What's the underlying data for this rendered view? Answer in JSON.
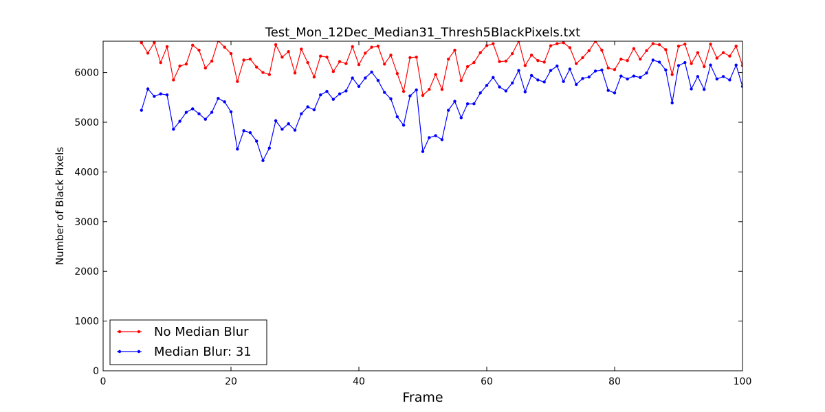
{
  "chart_data": {
    "type": "line",
    "title": "Test_Mon_12Dec_Median31_Thresh5BlackPixels.txt",
    "xlabel": "Frame",
    "ylabel": "Number of Black Pixels",
    "xlim": [
      0,
      100
    ],
    "ylim": [
      0,
      6630
    ],
    "xticks": [
      0,
      20,
      40,
      60,
      80,
      100
    ],
    "yticks": [
      0,
      1000,
      2000,
      3000,
      4000,
      5000,
      6000
    ],
    "grid": false,
    "legend_position": "lower-left",
    "x": [
      6,
      7,
      8,
      9,
      10,
      11,
      12,
      13,
      14,
      15,
      16,
      17,
      18,
      19,
      20,
      21,
      22,
      23,
      24,
      25,
      26,
      27,
      28,
      29,
      30,
      31,
      32,
      33,
      34,
      35,
      36,
      37,
      38,
      39,
      40,
      41,
      42,
      43,
      44,
      45,
      46,
      47,
      48,
      49,
      50,
      51,
      52,
      53,
      54,
      55,
      56,
      57,
      58,
      59,
      60,
      61,
      62,
      63,
      64,
      65,
      66,
      67,
      68,
      69,
      70,
      71,
      72,
      73,
      74,
      75,
      76,
      77,
      78,
      79,
      80,
      81,
      82,
      83,
      84,
      85,
      86,
      87,
      88,
      89,
      90,
      91,
      92,
      93,
      94,
      95,
      96,
      97,
      98,
      99,
      100
    ],
    "series": [
      {
        "name": "No Median Blur",
        "color": "#ff0000",
        "values": [
          6600,
          6390,
          6600,
          6200,
          6520,
          5850,
          6130,
          6170,
          6550,
          6450,
          6090,
          6230,
          6640,
          6510,
          6380,
          5820,
          6250,
          6270,
          6110,
          6000,
          5960,
          6560,
          6310,
          6420,
          5990,
          6470,
          6200,
          5910,
          6330,
          6310,
          6020,
          6220,
          6180,
          6520,
          6160,
          6390,
          6510,
          6530,
          6170,
          6350,
          5980,
          5620,
          6300,
          6310,
          5540,
          5660,
          5960,
          5660,
          6270,
          6450,
          5840,
          6120,
          6200,
          6400,
          6540,
          6580,
          6220,
          6230,
          6380,
          6630,
          6140,
          6350,
          6240,
          6210,
          6540,
          6580,
          6600,
          6500,
          6180,
          6300,
          6440,
          6630,
          6450,
          6090,
          6060,
          6270,
          6240,
          6480,
          6270,
          6440,
          6580,
          6560,
          6460,
          5960,
          6530,
          6570,
          6180,
          6400,
          6120,
          6570,
          6290,
          6400,
          6330,
          6530,
          6140
        ]
      },
      {
        "name": "Median Blur: 31",
        "color": "#0000ff",
        "values": [
          5240,
          5670,
          5520,
          5570,
          5550,
          4860,
          5020,
          5200,
          5270,
          5170,
          5060,
          5200,
          5480,
          5410,
          5210,
          4460,
          4830,
          4790,
          4620,
          4230,
          4480,
          5030,
          4860,
          4970,
          4840,
          5170,
          5310,
          5250,
          5550,
          5620,
          5460,
          5570,
          5630,
          5890,
          5720,
          5890,
          6010,
          5840,
          5600,
          5470,
          5110,
          4940,
          5530,
          5650,
          4410,
          4690,
          4730,
          4650,
          5240,
          5420,
          5090,
          5370,
          5370,
          5590,
          5740,
          5900,
          5710,
          5630,
          5790,
          6040,
          5610,
          5940,
          5850,
          5810,
          6040,
          6130,
          5820,
          6070,
          5760,
          5880,
          5910,
          6030,
          6050,
          5640,
          5590,
          5930,
          5870,
          5930,
          5900,
          5990,
          6250,
          6210,
          6050,
          5390,
          6140,
          6200,
          5670,
          5920,
          5660,
          6150,
          5870,
          5920,
          5850,
          6150,
          5720
        ]
      }
    ]
  }
}
